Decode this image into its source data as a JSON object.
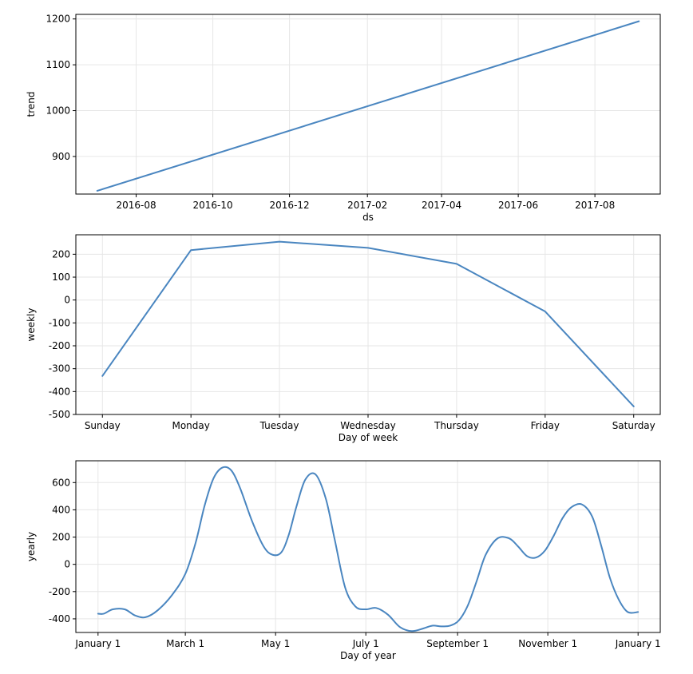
{
  "chart_data": [
    {
      "type": "line",
      "xlabel": "ds",
      "ylabel": "trend",
      "x_scale": "date",
      "xlim": [
        "2016-06-14",
        "2017-09-22"
      ],
      "ylim": [
        818,
        1210
      ],
      "xticks": [
        {
          "value": "2016-08-01",
          "label": "2016-08"
        },
        {
          "value": "2016-10-01",
          "label": "2016-10"
        },
        {
          "value": "2016-12-01",
          "label": "2016-12"
        },
        {
          "value": "2017-02-01",
          "label": "2017-02"
        },
        {
          "value": "2017-04-01",
          "label": "2017-04"
        },
        {
          "value": "2017-06-01",
          "label": "2017-06"
        },
        {
          "value": "2017-08-01",
          "label": "2017-08"
        }
      ],
      "yticks": [
        900,
        1000,
        1100,
        1200
      ],
      "grid": true,
      "color": "#4a86c0",
      "series": [
        {
          "x": [
            "2016-07-01",
            "2017-09-05"
          ],
          "y": [
            825,
            1195
          ]
        }
      ]
    },
    {
      "type": "line",
      "xlabel": "Day of week",
      "ylabel": "weekly",
      "x_scale": "category",
      "categories": [
        "Sunday",
        "Monday",
        "Tuesday",
        "Wednesday",
        "Thursday",
        "Friday",
        "Saturday"
      ],
      "xlim": [
        -0.3,
        6.3
      ],
      "ylim": [
        -500,
        285
      ],
      "yticks": [
        -500,
        -400,
        -300,
        -200,
        -100,
        0,
        100,
        200
      ],
      "grid": true,
      "color": "#4a86c0",
      "series": [
        {
          "values": [
            -332,
            218,
            255,
            228,
            158,
            -50,
            -465
          ]
        }
      ]
    },
    {
      "type": "line",
      "xlabel": "Day of year",
      "ylabel": "yearly",
      "x_scale": "day",
      "xlim": [
        -15,
        380
      ],
      "ylim": [
        -500,
        760
      ],
      "xticks": [
        {
          "value": 0,
          "label": "January 1"
        },
        {
          "value": 59,
          "label": "March 1"
        },
        {
          "value": 120,
          "label": "May 1"
        },
        {
          "value": 181,
          "label": "July 1"
        },
        {
          "value": 243,
          "label": "September 1"
        },
        {
          "value": 304,
          "label": "November 1"
        },
        {
          "value": 365,
          "label": "January 1"
        }
      ],
      "yticks": [
        -400,
        -200,
        0,
        200,
        400,
        600
      ],
      "grid": true,
      "color": "#4a86c0",
      "series": [
        {
          "x": [
            0,
            4,
            10,
            18,
            25,
            32,
            40,
            50,
            59,
            66,
            72,
            78,
            84,
            90,
            96,
            104,
            112,
            118,
            124,
            129,
            134,
            140,
            147,
            154,
            160,
            167,
            174,
            181,
            188,
            196,
            204,
            212,
            220,
            226,
            232,
            238,
            244,
            250,
            256,
            262,
            270,
            278,
            284,
            290,
            296,
            302,
            308,
            314,
            320,
            327,
            334,
            340,
            346,
            352,
            358,
            365
          ],
          "y": [
            -362,
            -362,
            -330,
            -330,
            -375,
            -388,
            -340,
            -225,
            -70,
            160,
            430,
            630,
            710,
            690,
            560,
            320,
            130,
            70,
            90,
            220,
            420,
            620,
            660,
            480,
            180,
            -170,
            -310,
            -330,
            -320,
            -370,
            -460,
            -490,
            -470,
            -450,
            -455,
            -450,
            -410,
            -300,
            -120,
            70,
            190,
            190,
            130,
            60,
            50,
            100,
            210,
            340,
            420,
            440,
            350,
            140,
            -100,
            -260,
            -350,
            -350
          ]
        }
      ]
    }
  ]
}
